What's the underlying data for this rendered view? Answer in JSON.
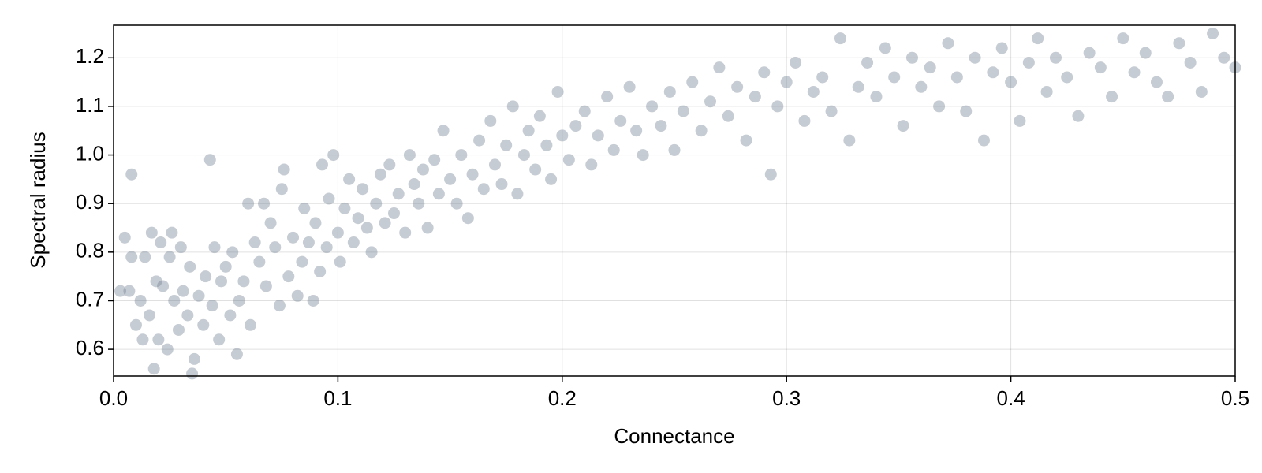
{
  "chart_data": {
    "type": "scatter",
    "x_label": "Connectance",
    "y_label": "Spectral radius",
    "x": [
      0.003,
      0.005,
      0.007,
      0.008,
      0.008,
      0.01,
      0.012,
      0.013,
      0.014,
      0.016,
      0.017,
      0.018,
      0.019,
      0.02,
      0.021,
      0.022,
      0.024,
      0.025,
      0.026,
      0.027,
      0.029,
      0.03,
      0.031,
      0.033,
      0.034,
      0.035,
      0.036,
      0.038,
      0.04,
      0.041,
      0.043,
      0.044,
      0.045,
      0.047,
      0.048,
      0.05,
      0.052,
      0.053,
      0.055,
      0.056,
      0.058,
      0.06,
      0.061,
      0.063,
      0.065,
      0.067,
      0.068,
      0.07,
      0.072,
      0.074,
      0.075,
      0.076,
      0.078,
      0.08,
      0.082,
      0.084,
      0.085,
      0.087,
      0.089,
      0.09,
      0.092,
      0.093,
      0.095,
      0.096,
      0.098,
      0.1,
      0.101,
      0.103,
      0.105,
      0.107,
      0.109,
      0.111,
      0.113,
      0.115,
      0.117,
      0.119,
      0.121,
      0.123,
      0.125,
      0.127,
      0.13,
      0.132,
      0.134,
      0.136,
      0.138,
      0.14,
      0.143,
      0.145,
      0.147,
      0.15,
      0.153,
      0.155,
      0.158,
      0.16,
      0.163,
      0.165,
      0.168,
      0.17,
      0.173,
      0.175,
      0.178,
      0.18,
      0.183,
      0.185,
      0.188,
      0.19,
      0.193,
      0.195,
      0.198,
      0.2,
      0.203,
      0.206,
      0.21,
      0.213,
      0.216,
      0.22,
      0.223,
      0.226,
      0.23,
      0.233,
      0.236,
      0.24,
      0.244,
      0.248,
      0.25,
      0.254,
      0.258,
      0.262,
      0.266,
      0.27,
      0.274,
      0.278,
      0.282,
      0.286,
      0.29,
      0.293,
      0.296,
      0.3,
      0.304,
      0.308,
      0.312,
      0.316,
      0.32,
      0.324,
      0.328,
      0.332,
      0.336,
      0.34,
      0.344,
      0.348,
      0.352,
      0.356,
      0.36,
      0.364,
      0.368,
      0.372,
      0.376,
      0.38,
      0.384,
      0.388,
      0.392,
      0.396,
      0.4,
      0.404,
      0.408,
      0.412,
      0.416,
      0.42,
      0.425,
      0.43,
      0.435,
      0.44,
      0.445,
      0.45,
      0.455,
      0.46,
      0.465,
      0.47,
      0.475,
      0.48,
      0.485,
      0.49,
      0.495,
      0.5
    ],
    "values": [
      0.72,
      0.83,
      0.72,
      0.96,
      0.79,
      0.65,
      0.7,
      0.62,
      0.79,
      0.67,
      0.84,
      0.56,
      0.74,
      0.62,
      0.82,
      0.73,
      0.6,
      0.79,
      0.84,
      0.7,
      0.64,
      0.81,
      0.72,
      0.67,
      0.77,
      0.55,
      0.58,
      0.71,
      0.65,
      0.75,
      0.99,
      0.69,
      0.81,
      0.62,
      0.74,
      0.77,
      0.67,
      0.8,
      0.59,
      0.7,
      0.74,
      0.9,
      0.65,
      0.82,
      0.78,
      0.9,
      0.73,
      0.86,
      0.81,
      0.69,
      0.93,
      0.97,
      0.75,
      0.83,
      0.71,
      0.78,
      0.89,
      0.82,
      0.7,
      0.86,
      0.76,
      0.98,
      0.81,
      0.91,
      1.0,
      0.84,
      0.78,
      0.89,
      0.95,
      0.82,
      0.87,
      0.93,
      0.85,
      0.8,
      0.9,
      0.96,
      0.86,
      0.98,
      0.88,
      0.92,
      0.84,
      1.0,
      0.94,
      0.9,
      0.97,
      0.85,
      0.99,
      0.92,
      1.05,
      0.95,
      0.9,
      1.0,
      0.87,
      0.96,
      1.03,
      0.93,
      1.07,
      0.98,
      0.94,
      1.02,
      1.1,
      0.92,
      1.0,
      1.05,
      0.97,
      1.08,
      1.02,
      0.95,
      1.13,
      1.04,
      0.99,
      1.06,
      1.09,
      0.98,
      1.04,
      1.12,
      1.01,
      1.07,
      1.14,
      1.05,
      1.0,
      1.1,
      1.06,
      1.13,
      1.01,
      1.09,
      1.15,
      1.05,
      1.11,
      1.18,
      1.08,
      1.14,
      1.03,
      1.12,
      1.17,
      0.96,
      1.1,
      1.15,
      1.19,
      1.07,
      1.13,
      1.16,
      1.09,
      1.24,
      1.03,
      1.14,
      1.19,
      1.12,
      1.22,
      1.16,
      1.06,
      1.2,
      1.14,
      1.18,
      1.1,
      1.23,
      1.16,
      1.09,
      1.2,
      1.03,
      1.17,
      1.22,
      1.15,
      1.07,
      1.19,
      1.24,
      1.13,
      1.2,
      1.16,
      1.08,
      1.21,
      1.18,
      1.12,
      1.24,
      1.17,
      1.21,
      1.15,
      1.12,
      1.23,
      1.19,
      1.13,
      1.25,
      1.2,
      1.18
    ],
    "color": "#708090",
    "xlim": [
      0,
      0.5
    ],
    "xticks": [
      {
        "value": 0,
        "label": "0.0"
      },
      0.1,
      0.2,
      0.3,
      0.4,
      0.5
    ],
    "ylim": [
      0.545,
      1.267
    ],
    "yticks": [
      0.6,
      0.7,
      0.8,
      0.9,
      {
        "value": 1,
        "label": "1.0"
      },
      1.1,
      1.2
    ],
    "grid": true
  }
}
